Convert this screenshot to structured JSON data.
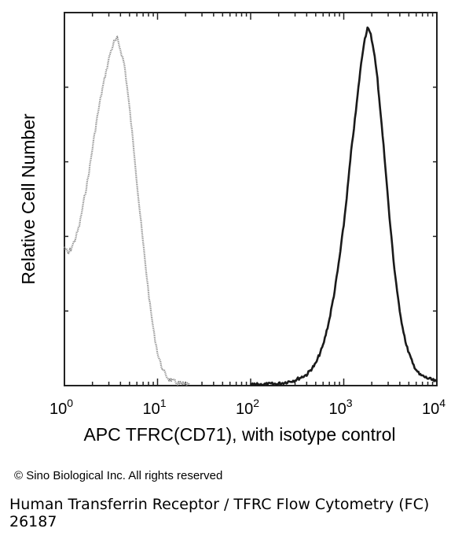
{
  "chart_data": {
    "type": "line",
    "xlabel": "APC TFRC(CD71), with isotype control",
    "ylabel": "Relative Cell Number",
    "xscale": "log",
    "xlim": [
      1,
      10000
    ],
    "ylim": [
      0,
      100
    ],
    "x_ticks": [
      {
        "value": 1,
        "base": "10",
        "exp": "0"
      },
      {
        "value": 10,
        "base": "10",
        "exp": "1"
      },
      {
        "value": 100,
        "base": "10",
        "exp": "2"
      },
      {
        "value": 1000,
        "base": "10",
        "exp": "3"
      },
      {
        "value": 10000,
        "base": "10",
        "exp": "4"
      }
    ],
    "grid": false,
    "legend": "none",
    "series": [
      {
        "style": "light",
        "color": "#8a8a8a",
        "points": [
          [
            1.0,
            38
          ],
          [
            1.1,
            36
          ],
          [
            1.2,
            38
          ],
          [
            1.3,
            40
          ],
          [
            1.45,
            44
          ],
          [
            1.6,
            50
          ],
          [
            1.8,
            57
          ],
          [
            2.0,
            65
          ],
          [
            2.2,
            72
          ],
          [
            2.5,
            80
          ],
          [
            2.8,
            86
          ],
          [
            3.1,
            91
          ],
          [
            3.4,
            94
          ],
          [
            3.7,
            95
          ],
          [
            4.0,
            92
          ],
          [
            4.4,
            88
          ],
          [
            4.8,
            80
          ],
          [
            5.2,
            72
          ],
          [
            5.7,
            62
          ],
          [
            6.2,
            52
          ],
          [
            6.8,
            42
          ],
          [
            7.5,
            32
          ],
          [
            8.3,
            22
          ],
          [
            9.2,
            14
          ],
          [
            10.2,
            8
          ],
          [
            11.5,
            4
          ],
          [
            13,
            2
          ],
          [
            15,
            1
          ],
          [
            18,
            0.4
          ],
          [
            22,
            0.2
          ]
        ]
      },
      {
        "style": "dark",
        "color": "#1a1a1a",
        "points": [
          [
            100,
            0.2
          ],
          [
            200,
            0.5
          ],
          [
            300,
            1.5
          ],
          [
            400,
            3
          ],
          [
            500,
            6
          ],
          [
            600,
            11
          ],
          [
            700,
            18
          ],
          [
            800,
            26
          ],
          [
            900,
            35
          ],
          [
            1000,
            44
          ],
          [
            1100,
            54
          ],
          [
            1200,
            64
          ],
          [
            1350,
            75
          ],
          [
            1500,
            86
          ],
          [
            1650,
            94
          ],
          [
            1800,
            98
          ],
          [
            1950,
            96
          ],
          [
            2100,
            92
          ],
          [
            2300,
            84
          ],
          [
            2500,
            74
          ],
          [
            2800,
            60
          ],
          [
            3100,
            46
          ],
          [
            3500,
            32
          ],
          [
            4000,
            20
          ],
          [
            4700,
            11
          ],
          [
            5500,
            6
          ],
          [
            6500,
            3
          ],
          [
            8000,
            2
          ],
          [
            10000,
            1
          ]
        ]
      }
    ]
  },
  "copyright": "© Sino Biological Inc. All rights reserved",
  "caption": "Human Transferrin Receptor / TFRC Flow Cytometry (FC) 26187"
}
